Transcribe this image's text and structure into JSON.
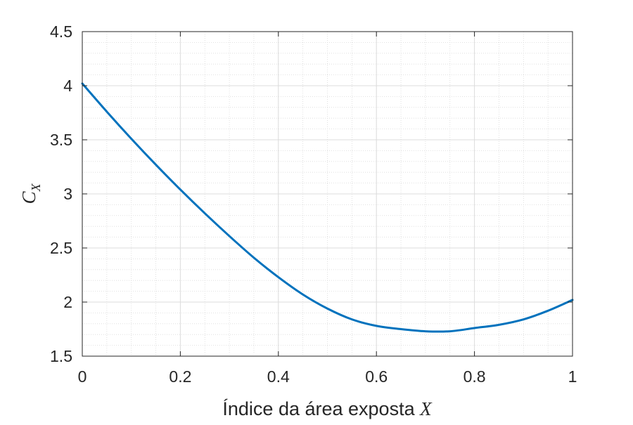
{
  "chart_data": {
    "type": "line",
    "title": "",
    "xlabel": "Índice da área exposta",
    "xlabel_var": "X",
    "ylabel": "C",
    "ylabel_sub": "X",
    "xlim": [
      0,
      1
    ],
    "ylim": [
      1.5,
      4.5
    ],
    "xticks": [
      0,
      0.2,
      0.4,
      0.6,
      0.8,
      1
    ],
    "xtick_labels": [
      "0",
      "0.2",
      "0.4",
      "0.6",
      "0.8",
      "1"
    ],
    "yticks": [
      1.5,
      2,
      2.5,
      3,
      3.5,
      4,
      4.5
    ],
    "ytick_labels": [
      "1.5",
      "2",
      "2.5",
      "3",
      "3.5",
      "4",
      "4.5"
    ],
    "grid": true,
    "minor_grid": true,
    "legend": false,
    "series": [
      {
        "color": "#0072BD",
        "x": [
          0,
          0.05,
          0.1,
          0.15,
          0.2,
          0.25,
          0.3,
          0.35,
          0.4,
          0.45,
          0.5,
          0.55,
          0.6,
          0.65,
          0.7,
          0.75,
          0.8,
          0.85,
          0.9,
          0.95,
          1.0
        ],
        "y": [
          4.02,
          3.76,
          3.51,
          3.27,
          3.04,
          2.82,
          2.61,
          2.41,
          2.23,
          2.07,
          1.94,
          1.84,
          1.78,
          1.75,
          1.73,
          1.73,
          1.76,
          1.79,
          1.84,
          1.92,
          2.02
        ]
      }
    ]
  }
}
